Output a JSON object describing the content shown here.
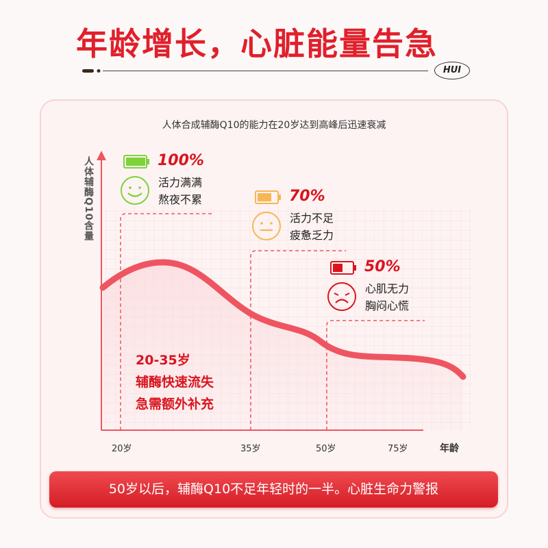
{
  "header": {
    "title": "年龄增长，心脏能量告急",
    "logo": "HUI"
  },
  "card": {
    "subtitle": "人体合成辅酶Q10的能力在20岁达到高峰后迅速衰减",
    "note_lines": [
      "20-35岁",
      "辅酶快速流失",
      "急需额外补充"
    ]
  },
  "chart_data": {
    "type": "line",
    "ylabel": "人体辅酶Q10含量",
    "xlabel": "年龄",
    "categories": [
      "20岁",
      "35岁",
      "50岁",
      "75岁"
    ],
    "grid": true,
    "annotations": [
      {
        "age": "20岁",
        "value": "100%",
        "lines": [
          "活力满满",
          "熬夜不累"
        ],
        "battery_level": 1.0,
        "color": "#7ed23a",
        "face": "smile"
      },
      {
        "age": "35岁",
        "value": "70%",
        "lines": [
          "活力不足",
          "疲惫乏力"
        ],
        "battery_level": 0.7,
        "color": "#f8b653",
        "face": "neutral"
      },
      {
        "age": "50岁",
        "value": "50%",
        "lines": [
          "心肌无力",
          "胸闷心慌"
        ],
        "battery_level": 0.5,
        "color": "#d9151f",
        "face": "sad"
      }
    ],
    "curve_color": "#ee5561"
  },
  "banner": {
    "text": "50岁以后，辅酶Q10不足年轻时的一半。心脏生命力警报"
  }
}
